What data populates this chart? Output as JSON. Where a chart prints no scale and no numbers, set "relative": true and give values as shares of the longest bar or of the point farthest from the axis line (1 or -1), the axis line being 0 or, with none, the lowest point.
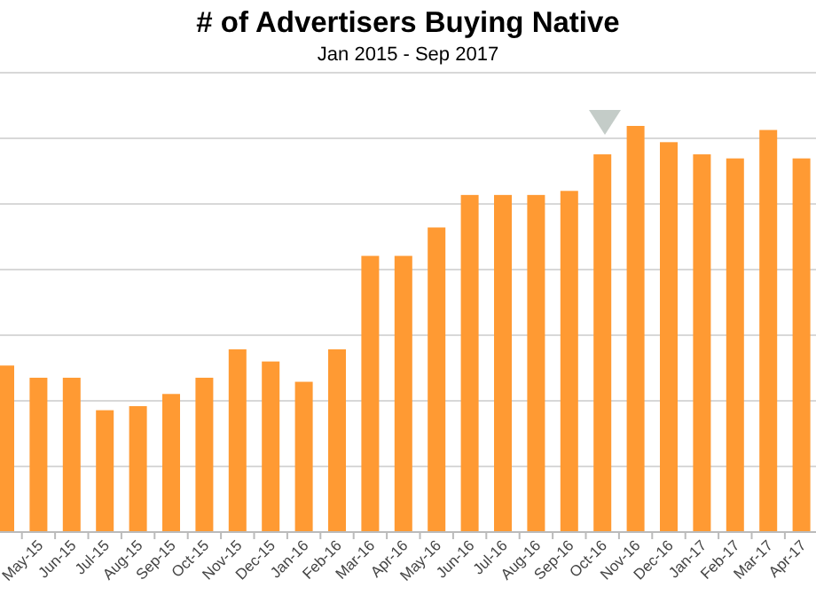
{
  "chart_data": {
    "type": "bar",
    "title": "# of Advertisers Buying Native",
    "subtitle": "Jan 2015 - Sep 2017",
    "relative": true,
    "grid": "y",
    "color": "#ff9a33",
    "categories": [
      null,
      "May-15",
      "Jun-15",
      "Jul-15",
      "Aug-15",
      "Sep-15",
      "Oct-15",
      "Nov-15",
      "Dec-15",
      "Jan-16",
      "Feb-16",
      "Mar-16",
      "Apr-16",
      "May-16",
      "Jun-16",
      "Jul-16",
      "Aug-16",
      "Sep-16",
      "Oct-16",
      "Nov-16",
      "Dec-16",
      "Jan-17",
      "Feb-17",
      "Mar-17",
      "Apr-17"
    ],
    "values": [
      0.41,
      0.38,
      0.38,
      0.3,
      0.31,
      0.34,
      0.38,
      0.45,
      0.42,
      0.37,
      0.45,
      0.68,
      0.68,
      0.75,
      0.83,
      0.83,
      0.83,
      0.84,
      0.93,
      1,
      0.96,
      0.93,
      0.92,
      0.99,
      0.92
    ]
  }
}
